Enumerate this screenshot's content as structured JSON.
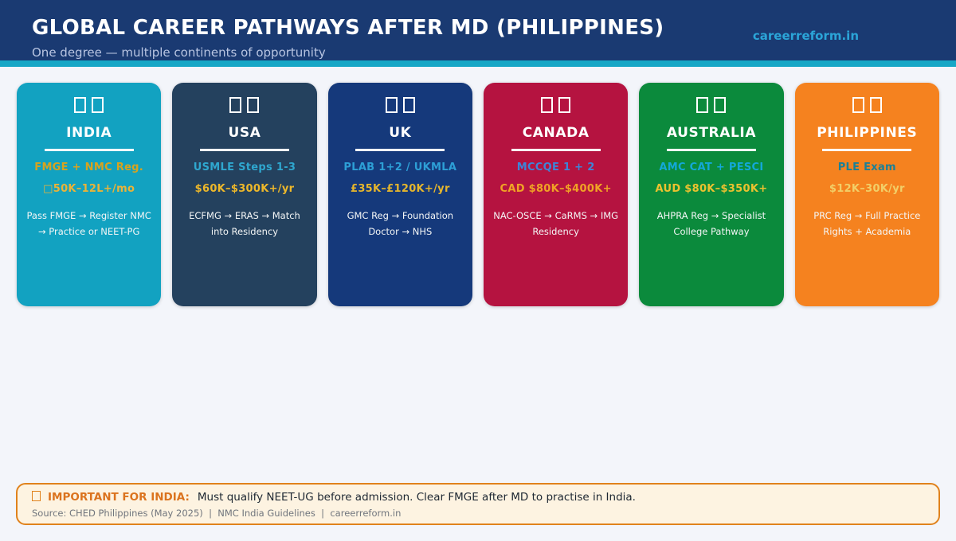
{
  "header": {
    "title": "GLOBAL CAREER PATHWAYS AFTER MD (PHILIPPINES)",
    "subtitle": "One degree — multiple continents of opportunity",
    "brand": "careerreform.in",
    "bg_color": "#1a3a72",
    "accent_bar_color": "#17a7c6",
    "brand_color": "#2ba5d8"
  },
  "cards": [
    {
      "country": "INDIA",
      "flag_icon": "india-flag-missing-glyph",
      "exam": "FMGE + NMC Reg.",
      "salary": "□50K–12L+/mo",
      "pathway": "Pass FMGE → Register NMC → Practice or NEET-PG",
      "color": "#12a2c1",
      "exam_color": "#d7a31f",
      "salary_color": "#eab338"
    },
    {
      "country": "USA",
      "flag_icon": "usa-flag-missing-glyph",
      "exam": "USMLE Steps 1-3",
      "salary": "$60K–$300K+/yr",
      "pathway": "ECFMG → ERAS → Match into Residency",
      "color": "#24415e",
      "exam_color": "#2fa7cf",
      "salary_color": "#eeb82a"
    },
    {
      "country": "UK",
      "flag_icon": "uk-flag-missing-glyph",
      "exam": "PLAB 1+2 / UKMLA",
      "salary": "£35K–£120K+/yr",
      "pathway": "GMC Reg → Foundation Doctor → NHS",
      "color": "#15397b",
      "exam_color": "#2d9fd6",
      "salary_color": "#e6b62c"
    },
    {
      "country": "CANADA",
      "flag_icon": "canada-flag-missing-glyph",
      "exam": "MCCQE 1 + 2",
      "salary": "CAD $80K–$400K+",
      "pathway": "NAC-OSCE → CaRMS → IMG Residency",
      "color": "#b51340",
      "exam_color": "#3d85d8",
      "salary_color": "#f0a325"
    },
    {
      "country": "AUSTRALIA",
      "flag_icon": "australia-flag-missing-glyph",
      "exam": "AMC CAT + PESCI",
      "salary": "AUD $80K–$350K+",
      "pathway": "AHPRA Reg → Specialist College Pathway",
      "color": "#0b8a3c",
      "exam_color": "#13a8d8",
      "salary_color": "#ecc22f"
    },
    {
      "country": "PHILIPPINES",
      "flag_icon": "philippines-flag-missing-glyph",
      "exam": "PLE Exam",
      "salary": "$12K–30K/yr",
      "pathway": "PRC Reg → Full Practice Rights + Academia",
      "color": "#f5821f",
      "exam_color": "#1b8097",
      "salary_color": "#f2cf68"
    }
  ],
  "callout": {
    "icon": "bell-missing-glyph-icon",
    "label": "IMPORTANT FOR INDIA:",
    "text": "Must qualify NEET-UG before admission. Clear FMGE after MD to practise in India.",
    "source": "Source: CHED Philippines (May 2025)  |  NMC India Guidelines  |  careerreform.in",
    "border_color": "#e0821c",
    "bg_color": "#fdf3e1",
    "label_color": "#db731e"
  },
  "page_bg_color": "#f3f5fa"
}
